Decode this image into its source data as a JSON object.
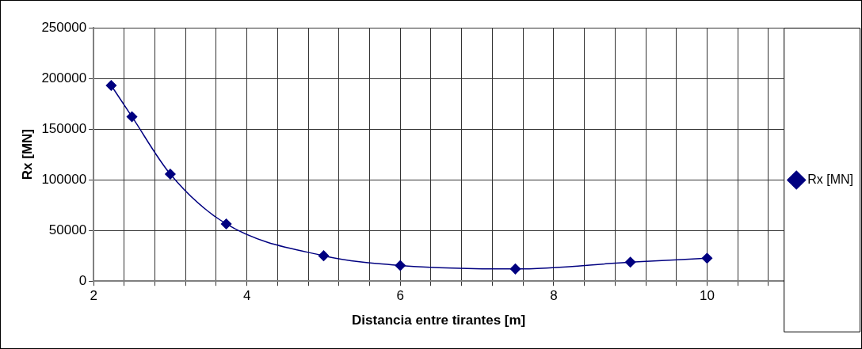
{
  "chart_data": {
    "type": "line",
    "xlabel": "Distancia entre tirantes [m]",
    "ylabel": "Rx [MN]",
    "x": [
      2.23,
      2.5,
      3,
      3.73,
      5,
      6,
      7.5,
      9,
      10
    ],
    "series": [
      {
        "name": "Rx [MN]",
        "color": "#000080",
        "values": [
          193000,
          162200,
          105600,
          56400,
          25000,
          15400,
          12000,
          18700,
          22600
        ]
      }
    ],
    "xlim": [
      2,
      11
    ],
    "xticks": [
      2,
      {
        "value": 2.4,
        "label": null
      },
      {
        "value": 2.8,
        "label": null
      },
      {
        "value": 3.2,
        "label": null
      },
      {
        "value": 3.6,
        "label": null
      },
      4,
      {
        "value": 4.4,
        "label": null
      },
      {
        "value": 4.8,
        "label": null
      },
      {
        "value": 5.2,
        "label": null
      },
      {
        "value": 5.6,
        "label": null
      },
      6,
      {
        "value": 6.4,
        "label": null
      },
      {
        "value": 6.8,
        "label": null
      },
      {
        "value": 7.2,
        "label": null
      },
      {
        "value": 7.6,
        "label": null
      },
      8,
      {
        "value": 8.4,
        "label": null
      },
      {
        "value": 8.8,
        "label": null
      },
      {
        "value": 9.2,
        "label": null
      },
      {
        "value": 9.6,
        "label": null
      },
      10,
      {
        "value": 10.4,
        "label": null
      },
      {
        "value": 10.8,
        "label": null
      }
    ],
    "ylim": [
      0,
      250000
    ],
    "yticks": [
      0,
      50000,
      100000,
      150000,
      200000,
      250000
    ],
    "grid": true,
    "legend": "right",
    "marker": "diamond",
    "line_style": "solid"
  }
}
